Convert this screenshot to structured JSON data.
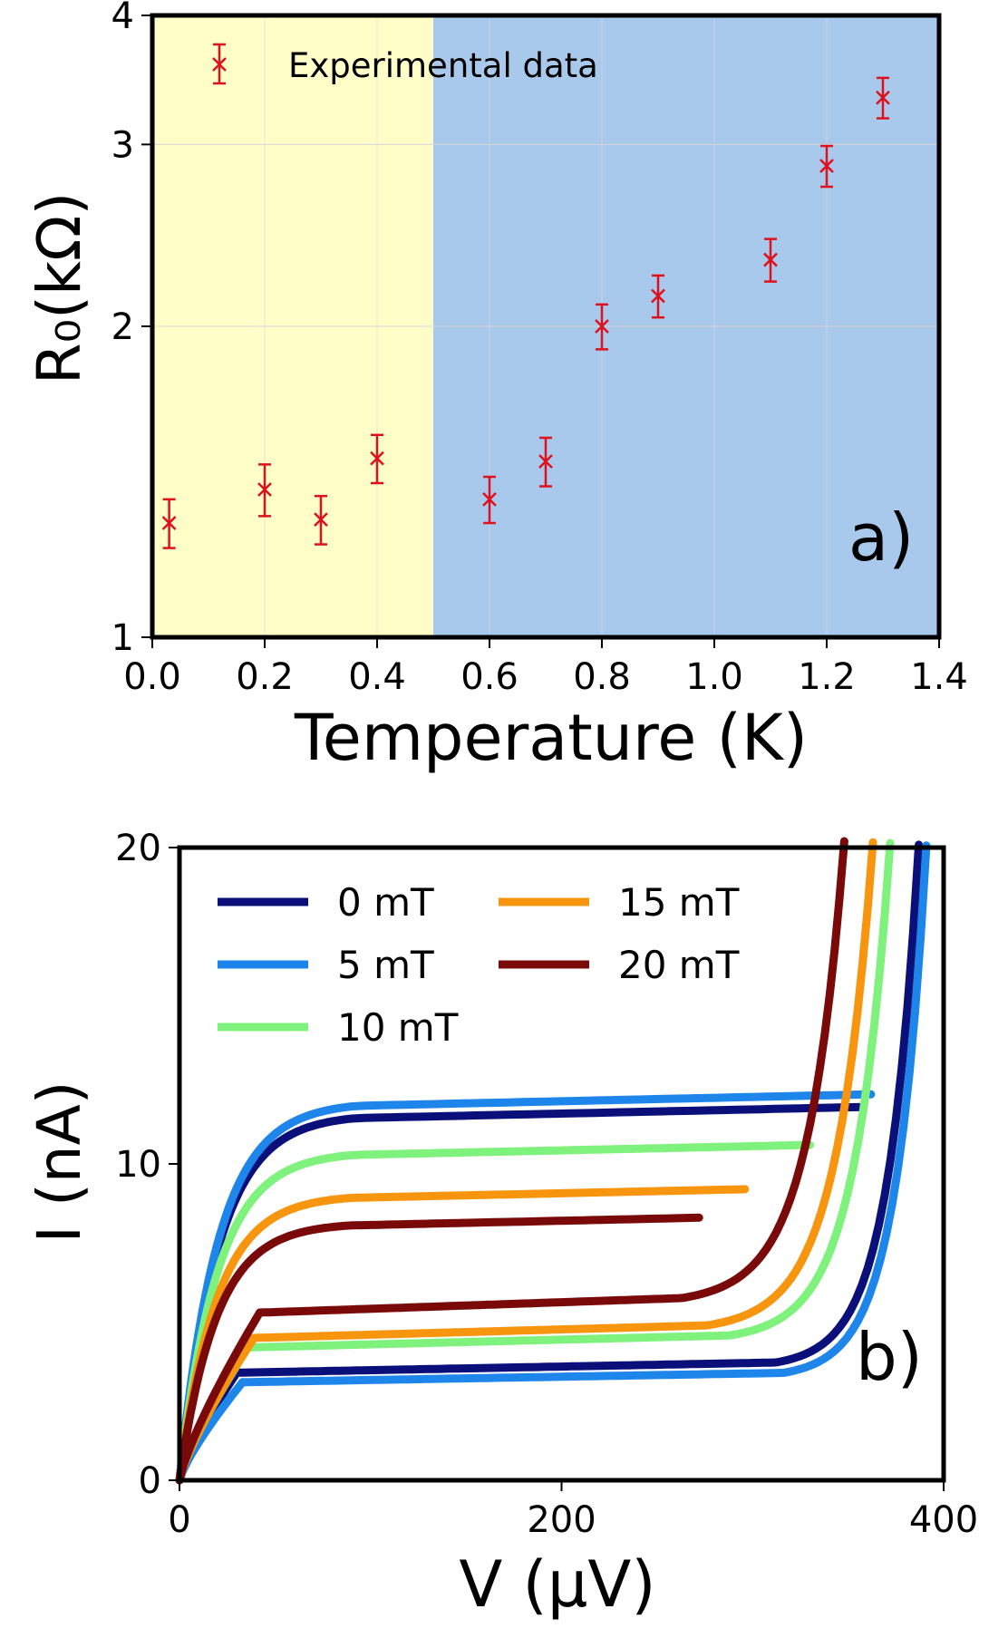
{
  "chart_data": [
    {
      "type": "scatter",
      "panel_label": "a)",
      "xlabel": "Temperature (K)",
      "ylabel": "R₀(kΩ)",
      "xlim": [
        0.0,
        1.4
      ],
      "ylim": [
        1,
        4
      ],
      "yscale": "log",
      "xticks": [
        "0.0",
        "0.2",
        "0.4",
        "0.6",
        "0.8",
        "1.0",
        "1.2",
        "1.4"
      ],
      "yticks": [
        "1",
        "2",
        "3",
        "4"
      ],
      "regions": [
        {
          "x_from": 0.0,
          "x_to": 0.5,
          "color": "#fffdc8"
        },
        {
          "x_from": 0.5,
          "x_to": 1.4,
          "color": "#a9c9ec"
        }
      ],
      "legend": {
        "label": "Experimental data",
        "position": "top-left"
      },
      "marker_color": "#e0101a",
      "series": [
        {
          "name": "Experimental data",
          "x": [
            0.03,
            0.2,
            0.3,
            0.4,
            0.6,
            0.7,
            0.8,
            0.9,
            1.1,
            1.2,
            1.3
          ],
          "y": [
            1.29,
            1.39,
            1.3,
            1.49,
            1.36,
            1.48,
            2.0,
            2.14,
            2.32,
            2.86,
            3.33
          ],
          "err": [
            0.07,
            0.08,
            0.07,
            0.08,
            0.07,
            0.08,
            0.1,
            0.1,
            0.11,
            0.13,
            0.15
          ]
        }
      ]
    },
    {
      "type": "line",
      "panel_label": "b)",
      "xlabel": "V (µV)",
      "ylabel": "I (nA)",
      "xlim": [
        0,
        400
      ],
      "ylim": [
        0,
        20
      ],
      "xticks": [
        "0",
        "200",
        "400"
      ],
      "yticks": [
        "0",
        "10",
        "20"
      ],
      "legend_position": "top-left",
      "series": [
        {
          "name": "0 mT",
          "color": "#0a0f7a",
          "Ic": 11.8,
          "Ir": 3.4,
          "Vsw": 358,
          "Vret": 342,
          "V20": 387
        },
        {
          "name": "5 mT",
          "color": "#1e86ea",
          "Ic": 12.2,
          "Ir": 3.1,
          "Vsw": 362,
          "Vret": 346,
          "V20": 391
        },
        {
          "name": "10 mT",
          "color": "#7ff27d",
          "Ic": 10.6,
          "Ir": 4.2,
          "Vsw": 330,
          "Vret": 318,
          "V20": 372
        },
        {
          "name": "15 mT",
          "color": "#f7950e",
          "Ic": 9.2,
          "Ir": 4.5,
          "Vsw": 296,
          "Vret": 306,
          "V20": 363
        },
        {
          "name": "20 mT",
          "color": "#7a0a0a",
          "Ic": 8.3,
          "Ir": 5.3,
          "Vsw": 272,
          "Vret": 293,
          "V20": 348
        }
      ]
    }
  ]
}
